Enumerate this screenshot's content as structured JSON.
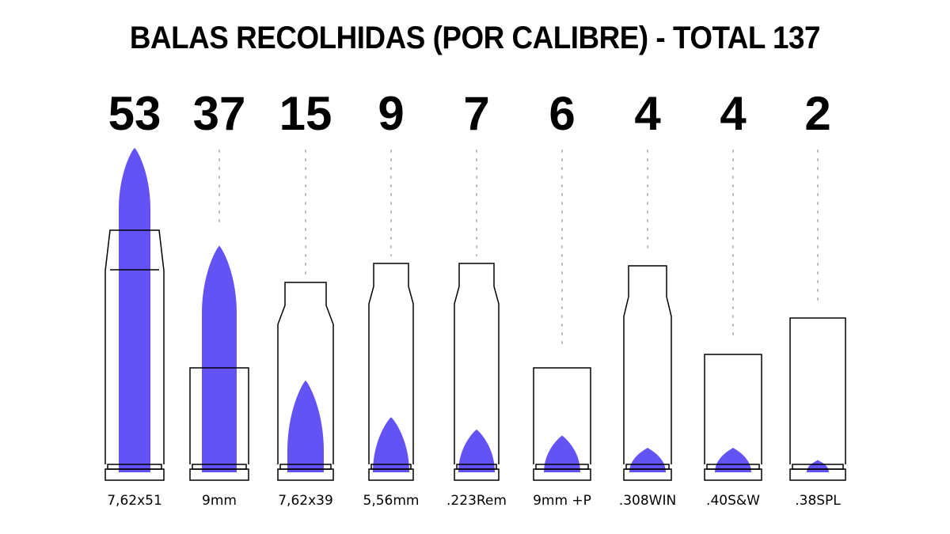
{
  "chart_data": {
    "type": "bar",
    "title": "BALAS RECOLHIDAS (POR CALIBRE) - TOTAL 137",
    "categories": [
      "7,62x51",
      "9mm",
      "7,62x39",
      "5,56mm",
      ".223Rem",
      "9mm +P",
      ".308WIN",
      ".40S&W",
      ".38SPL"
    ],
    "values": [
      53,
      37,
      15,
      9,
      7,
      6,
      4,
      4,
      2
    ],
    "ylim": [
      0,
      53
    ],
    "fill_color": "#6352f4",
    "outline_color": "#000000",
    "guide_color": "#bbbbbb"
  }
}
